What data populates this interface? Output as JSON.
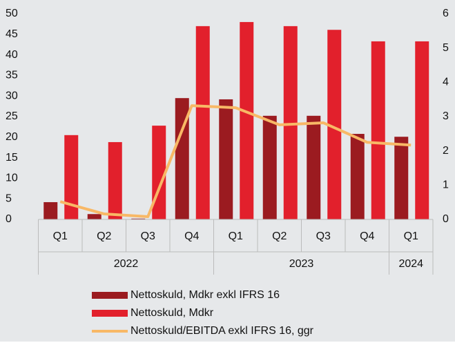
{
  "chart_data": {
    "type": "bar",
    "categories": [
      "Q1",
      "Q2",
      "Q3",
      "Q4",
      "Q1",
      "Q2",
      "Q3",
      "Q4",
      "Q1"
    ],
    "groups": [
      {
        "name": "2022",
        "count": 4
      },
      {
        "name": "2023",
        "count": 4
      },
      {
        "name": "2024",
        "count": 1
      }
    ],
    "series": [
      {
        "name": "Nettoskuld, Mdkr exkl IFRS 16",
        "type": "bar",
        "color": "#9b1b20",
        "values": [
          4.2,
          1.3,
          0.2,
          29.5,
          29.2,
          25.2,
          25.2,
          20.8,
          20.1
        ]
      },
      {
        "name": "Nettoskuld, Mdkr",
        "type": "bar",
        "color": "#e2202c",
        "values": [
          20.5,
          18.8,
          22.8,
          47.0,
          48.0,
          47.0,
          46.1,
          43.3,
          43.3
        ]
      },
      {
        "name": "Nettoskuld/EBITDA exkl IFRS 16, ggr",
        "type": "line",
        "axis": "y2",
        "color": "#f8b866",
        "values": [
          0.52,
          0.16,
          0.08,
          3.32,
          3.26,
          2.76,
          2.82,
          2.25,
          2.17
        ]
      }
    ],
    "ylim": [
      0,
      50
    ],
    "yticks": [
      0,
      5,
      10,
      15,
      20,
      25,
      30,
      35,
      40,
      45,
      50
    ],
    "y2lim": [
      0,
      6
    ],
    "y2ticks": [
      0,
      1,
      2,
      3,
      4,
      5,
      6
    ],
    "legend": "bottom",
    "background": "#e6e8ea"
  }
}
